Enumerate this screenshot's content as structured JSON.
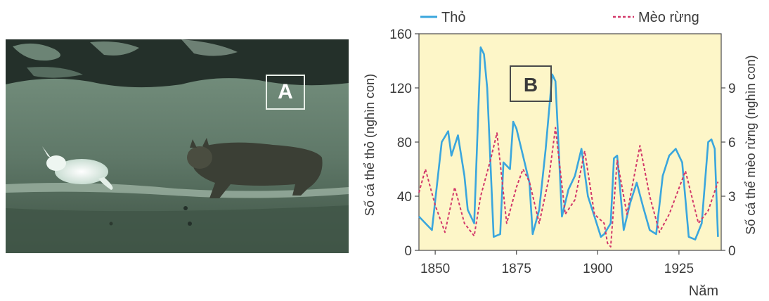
{
  "photo": {
    "label": "A",
    "colors": {
      "sky": "#2a3a2e",
      "ground": "#6f8a78",
      "hare": "#e7f1ec",
      "lynx": "#3b3f35"
    }
  },
  "chart_data": {
    "type": "line",
    "panel_label": "B",
    "xlabel": "Năm",
    "ylabel_left": "Số cá thể thỏ (nghìn con)",
    "ylabel_right": "Số cá thể mèo rừng (nghìn con)",
    "xlim": [
      1845,
      1938
    ],
    "ylim_left": [
      0,
      160
    ],
    "ylim_right": [
      0,
      12
    ],
    "x_ticks": [
      1850,
      1875,
      1900,
      1925
    ],
    "y_ticks_left": [
      0,
      40,
      80,
      120,
      160
    ],
    "y_ticks_right": [
      0,
      3,
      6,
      9
    ],
    "background": "#fdf6c8",
    "legend": [
      {
        "label": "Thỏ",
        "color": "#3aa6dd",
        "style": "solid"
      },
      {
        "label": "Mèo rừng",
        "color": "#d2386a",
        "style": "dashed"
      }
    ],
    "series": [
      {
        "name": "Thỏ",
        "axis": "left",
        "color": "#3aa6dd",
        "x": [
          1845,
          1847,
          1849,
          1852,
          1854,
          1855,
          1857,
          1859,
          1860,
          1862,
          1864,
          1865,
          1866,
          1868,
          1870,
          1871,
          1873,
          1874,
          1875,
          1877,
          1879,
          1880,
          1882,
          1884,
          1886,
          1887,
          1889,
          1891,
          1893,
          1895,
          1897,
          1899,
          1901,
          1902,
          1904,
          1905,
          1906,
          1908,
          1910,
          1912,
          1914,
          1916,
          1918,
          1920,
          1922,
          1924,
          1926,
          1928,
          1930,
          1932,
          1934,
          1935,
          1936,
          1937
        ],
        "y": [
          25,
          20,
          15,
          80,
          88,
          70,
          85,
          55,
          30,
          20,
          150,
          145,
          120,
          10,
          12,
          65,
          60,
          95,
          90,
          70,
          50,
          12,
          30,
          75,
          130,
          125,
          25,
          45,
          55,
          75,
          40,
          25,
          10,
          12,
          20,
          68,
          70,
          15,
          35,
          50,
          32,
          15,
          12,
          55,
          70,
          75,
          65,
          10,
          8,
          20,
          80,
          82,
          75,
          10
        ]
      },
      {
        "name": "Mèo rừng",
        "axis": "right",
        "color": "#d2386a",
        "x": [
          1845,
          1847,
          1850,
          1853,
          1856,
          1859,
          1862,
          1864,
          1867,
          1869,
          1872,
          1875,
          1877,
          1879,
          1882,
          1885,
          1887,
          1890,
          1893,
          1896,
          1899,
          1902,
          1903,
          1904,
          1906,
          1909,
          1913,
          1916,
          1919,
          1922,
          1927,
          1931,
          1934,
          1937
        ],
        "y": [
          3.2,
          4.5,
          2.5,
          1.0,
          3.5,
          1.5,
          0.8,
          3.0,
          5.0,
          6.5,
          1.5,
          3.5,
          4.5,
          3.8,
          1.5,
          4.0,
          6.8,
          2.0,
          2.8,
          5.5,
          2.0,
          1.5,
          0.4,
          0.2,
          5.0,
          2.0,
          5.8,
          3.0,
          1.0,
          2.0,
          4.4,
          1.5,
          2.2,
          3.8
        ]
      }
    ]
  }
}
